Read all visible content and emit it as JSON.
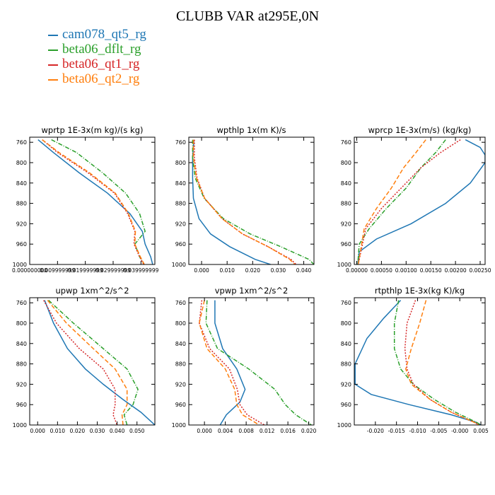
{
  "figure_title": "CLUBB VAR at295E,0N",
  "legend": [
    {
      "label": "cam078_qt5_rg",
      "color": "#1f77b4"
    },
    {
      "label": "beta06_dflt_rg",
      "color": "#2ca02c"
    },
    {
      "label": "beta06_qt1_rg",
      "color": "#d62728"
    },
    {
      "label": "beta06_qt2_rg",
      "color": "#ff7f0e"
    }
  ],
  "chart_data": [
    {
      "type": "line",
      "title": "wprtp  1E-3x(m kg)/(s kg)",
      "xlim": [
        0.0,
        0.045
      ],
      "ylim": [
        1000,
        750
      ],
      "xticks": [
        0.0,
        0.01,
        0.02,
        0.03,
        0.04
      ],
      "xtick_labels": [
        "0.000000000",
        "0.009999999",
        "0.019999999",
        "0.029999999",
        "0.039999999"
      ],
      "yticks": [
        760,
        800,
        840,
        880,
        920,
        960,
        1000
      ],
      "ytick_labels": [
        "760",
        "800",
        "840",
        "880",
        "920",
        "960",
        "1000"
      ],
      "series": [
        {
          "color": "#1f77b4",
          "dash": "",
          "x": [
            0.003,
            0.0085,
            0.0178,
            0.028,
            0.036,
            0.0405,
            0.0415,
            0.0435,
            0.0442
          ],
          "y": [
            755,
            780,
            820,
            860,
            900,
            935,
            960,
            985,
            1000
          ]
        },
        {
          "color": "#2ca02c",
          "dash": "6,2,1,2",
          "x": [
            0.0078,
            0.0168,
            0.0262,
            0.0345,
            0.0395,
            0.0415,
            0.0378,
            0.0395,
            0.0412
          ],
          "y": [
            755,
            780,
            820,
            860,
            900,
            935,
            960,
            985,
            1000
          ]
        },
        {
          "color": "#d62728",
          "dash": "2,2",
          "x": [
            0.0045,
            0.01,
            0.021,
            0.0305,
            0.0352,
            0.0378,
            0.0375,
            0.0395,
            0.041
          ],
          "y": [
            755,
            780,
            820,
            860,
            900,
            935,
            960,
            985,
            1000
          ]
        },
        {
          "color": "#ff7f0e",
          "dash": "6,3",
          "x": [
            0.0045,
            0.0105,
            0.0215,
            0.0308,
            0.0355,
            0.038,
            0.0378,
            0.0398,
            0.0412
          ],
          "y": [
            755,
            780,
            820,
            860,
            900,
            935,
            960,
            985,
            1000
          ]
        }
      ]
    },
    {
      "type": "line",
      "title": "wpthlp  1x(m K)/s",
      "xlim": [
        -0.005,
        0.044
      ],
      "ylim": [
        1000,
        750
      ],
      "xticks": [
        0.0,
        0.01,
        0.02,
        0.03,
        0.04
      ],
      "xtick_labels": [
        "0.000",
        "0.010",
        "0.020",
        "0.030",
        "0.040"
      ],
      "yticks": [
        760,
        800,
        840,
        880,
        920,
        960,
        1000
      ],
      "ytick_labels": [
        "760",
        "800",
        "840",
        "880",
        "920",
        "960",
        "1000"
      ],
      "series": [
        {
          "color": "#1f77b4",
          "dash": "",
          "x": [
            -0.003,
            -0.0035,
            -0.0035,
            -0.0032,
            -0.001,
            0.0035,
            0.011,
            0.021,
            0.027
          ],
          "y": [
            755,
            790,
            830,
            870,
            910,
            940,
            965,
            990,
            1000
          ]
        },
        {
          "color": "#2ca02c",
          "dash": "6,2,1,2",
          "x": [
            -0.0035,
            -0.0035,
            -0.0025,
            0.001,
            0.0085,
            0.019,
            0.031,
            0.042,
            0.044
          ],
          "y": [
            755,
            790,
            830,
            870,
            910,
            940,
            965,
            990,
            1000
          ]
        },
        {
          "color": "#d62728",
          "dash": "2,2",
          "x": [
            -0.0028,
            -0.0028,
            -0.0018,
            0.0012,
            0.008,
            0.016,
            0.026,
            0.035,
            0.037
          ],
          "y": [
            755,
            790,
            830,
            870,
            910,
            940,
            965,
            990,
            1000
          ]
        },
        {
          "color": "#ff7f0e",
          "dash": "6,3",
          "x": [
            -0.0032,
            -0.0032,
            -0.002,
            0.0012,
            0.008,
            0.016,
            0.026,
            0.0345,
            0.0365
          ],
          "y": [
            755,
            790,
            830,
            870,
            910,
            940,
            965,
            990,
            1000
          ]
        }
      ]
    },
    {
      "type": "line",
      "title": "wprcp  1E-3x(m/s) (kg/kg)",
      "xlim": [
        -5e-05,
        0.0026
      ],
      "ylim": [
        1000,
        750
      ],
      "xticks": [
        0.0,
        0.0005,
        0.001,
        0.0015,
        0.002,
        0.0025
      ],
      "xtick_labels": [
        "0.00000",
        "0.00050",
        "0.00100",
        "0.00150",
        "0.00200",
        "0.00250"
      ],
      "yticks": [
        760,
        800,
        840,
        880,
        920,
        960,
        1000
      ],
      "ytick_labels": [
        "760",
        "800",
        "840",
        "880",
        "920",
        "960",
        "1000"
      ],
      "series": [
        {
          "color": "#1f77b4",
          "dash": "",
          "x": [
            0.0022,
            0.0025,
            0.0026,
            0.0026,
            0.0023,
            0.0018,
            0.0011,
            0.0004,
            5e-05,
            2e-05
          ],
          "y": [
            755,
            770,
            785,
            800,
            840,
            880,
            920,
            950,
            975,
            1000
          ]
        },
        {
          "color": "#2ca02c",
          "dash": "6,2,1,2",
          "x": [
            0.0018,
            0.0016,
            0.0013,
            0.001,
            0.0006,
            0.00025,
            5e-05,
            2e-05
          ],
          "y": [
            755,
            780,
            810,
            850,
            890,
            930,
            960,
            1000
          ]
        },
        {
          "color": "#d62728",
          "dash": "2,2",
          "x": [
            0.0021,
            0.0017,
            0.0013,
            0.0009,
            0.0005,
            0.00018,
            3e-05
          ],
          "y": [
            755,
            780,
            810,
            850,
            890,
            930,
            1000
          ]
        },
        {
          "color": "#ff7f0e",
          "dash": "6,3",
          "x": [
            0.0014,
            0.0012,
            0.00095,
            0.0007,
            0.0004,
            0.00015,
            3e-05
          ],
          "y": [
            755,
            780,
            810,
            850,
            890,
            930,
            1000
          ]
        }
      ]
    },
    {
      "type": "line",
      "title": "upwp  1xm^2/s^2",
      "xlim": [
        -0.004,
        0.059
      ],
      "ylim": [
        1000,
        750
      ],
      "xticks": [
        0.0,
        0.01,
        0.02,
        0.03,
        0.04,
        0.05
      ],
      "xtick_labels": [
        "0.000",
        "0.010",
        "0.020",
        "0.030",
        "0.040",
        "0.050"
      ],
      "yticks": [
        760,
        800,
        840,
        880,
        920,
        960,
        1000
      ],
      "ytick_labels": [
        "760",
        "800",
        "840",
        "880",
        "920",
        "960",
        "1000"
      ],
      "series": [
        {
          "color": "#1f77b4",
          "dash": "",
          "x": [
            0.0035,
            0.008,
            0.015,
            0.024,
            0.033,
            0.043,
            0.052,
            0.059
          ],
          "y": [
            755,
            800,
            850,
            890,
            920,
            950,
            975,
            1000
          ]
        },
        {
          "color": "#2ca02c",
          "dash": "6,2,1,2",
          "x": [
            0.0055,
            0.018,
            0.033,
            0.045,
            0.0505,
            0.048,
            0.0435,
            0.045
          ],
          "y": [
            755,
            800,
            850,
            890,
            930,
            960,
            980,
            1000
          ]
        },
        {
          "color": "#d62728",
          "dash": "2,2",
          "x": [
            0.003,
            0.0095,
            0.021,
            0.033,
            0.039,
            0.039,
            0.038,
            0.04
          ],
          "y": [
            755,
            800,
            850,
            890,
            930,
            960,
            980,
            1000
          ]
        },
        {
          "color": "#ff7f0e",
          "dash": "6,3",
          "x": [
            0.005,
            0.0145,
            0.028,
            0.039,
            0.045,
            0.045,
            0.0425,
            0.043
          ],
          "y": [
            755,
            800,
            850,
            890,
            930,
            960,
            980,
            1000
          ]
        }
      ]
    },
    {
      "type": "line",
      "title": "vpwp  1xm^2/s^2",
      "xlim": [
        -0.003,
        0.021
      ],
      "ylim": [
        1000,
        750
      ],
      "xticks": [
        0.0,
        0.004,
        0.008,
        0.012,
        0.016,
        0.02
      ],
      "xtick_labels": [
        "0.000",
        "0.004",
        "0.008",
        "0.012",
        "0.016",
        "0.020"
      ],
      "yticks": [
        760,
        800,
        840,
        880,
        920,
        960,
        1000
      ],
      "ytick_labels": [
        "760",
        "800",
        "840",
        "880",
        "920",
        "960",
        "1000"
      ],
      "series": [
        {
          "color": "#1f77b4",
          "dash": "",
          "x": [
            0.002,
            0.002,
            0.0035,
            0.0062,
            0.0078,
            0.0068,
            0.0042,
            0.003
          ],
          "y": [
            755,
            800,
            850,
            890,
            930,
            955,
            980,
            1000
          ]
        },
        {
          "color": "#2ca02c",
          "dash": "6,2,1,2",
          "x": [
            0.0005,
            0.0003,
            0.0025,
            0.0085,
            0.0135,
            0.0155,
            0.0175,
            0.0205
          ],
          "y": [
            755,
            800,
            850,
            890,
            930,
            960,
            980,
            1000
          ]
        },
        {
          "color": "#d62728",
          "dash": "2,2",
          "x": [
            -0.0005,
            -0.001,
            0.001,
            0.0048,
            0.0063,
            0.0068,
            0.0082,
            0.0115
          ],
          "y": [
            755,
            800,
            850,
            890,
            930,
            960,
            980,
            1000
          ]
        },
        {
          "color": "#ff7f0e",
          "dash": "6,3",
          "x": [
            0.0,
            -0.001,
            0.0005,
            0.004,
            0.0058,
            0.0062,
            0.0073,
            0.0105
          ],
          "y": [
            755,
            800,
            850,
            890,
            930,
            960,
            980,
            1000
          ]
        }
      ]
    },
    {
      "type": "line",
      "title": "rtpthlp  1E-3x(kg K)/kg",
      "xlim": [
        -0.025,
        0.006
      ],
      "ylim": [
        1000,
        750
      ],
      "xticks": [
        -0.02,
        -0.015,
        -0.01,
        -0.005,
        0.0,
        0.005
      ],
      "xtick_labels": [
        "-0.020",
        "-0.015",
        "-0.010",
        "-0.005",
        "-0.000",
        "0.005"
      ],
      "yticks": [
        760,
        800,
        840,
        880,
        920,
        960,
        1000
      ],
      "ytick_labels": [
        "760",
        "800",
        "840",
        "880",
        "920",
        "960",
        "1000"
      ],
      "series": [
        {
          "color": "#1f77b4",
          "dash": "",
          "x": [
            -0.014,
            -0.018,
            -0.022,
            -0.0248,
            -0.0248,
            -0.021,
            -0.012,
            -0.002,
            0.004,
            0.005
          ],
          "y": [
            755,
            790,
            830,
            880,
            920,
            940,
            960,
            980,
            995,
            1000
          ]
        },
        {
          "color": "#2ca02c",
          "dash": "6,2,1,2",
          "x": [
            -0.0145,
            -0.0155,
            -0.0155,
            -0.014,
            -0.011,
            -0.006,
            -0.001,
            0.004,
            0.005
          ],
          "y": [
            755,
            800,
            850,
            890,
            920,
            950,
            975,
            995,
            1000
          ]
        },
        {
          "color": "#d62728",
          "dash": "2,2",
          "x": [
            -0.0105,
            -0.0125,
            -0.013,
            -0.0125,
            -0.011,
            -0.007,
            -0.002,
            0.0035,
            0.0045
          ],
          "y": [
            755,
            800,
            850,
            890,
            920,
            950,
            975,
            995,
            1000
          ]
        },
        {
          "color": "#ff7f0e",
          "dash": "6,3",
          "x": [
            -0.008,
            -0.0095,
            -0.0115,
            -0.0128,
            -0.0115,
            -0.007,
            -0.002,
            0.0035,
            0.0045
          ],
          "y": [
            755,
            800,
            850,
            890,
            920,
            950,
            975,
            995,
            1000
          ]
        }
      ]
    }
  ]
}
